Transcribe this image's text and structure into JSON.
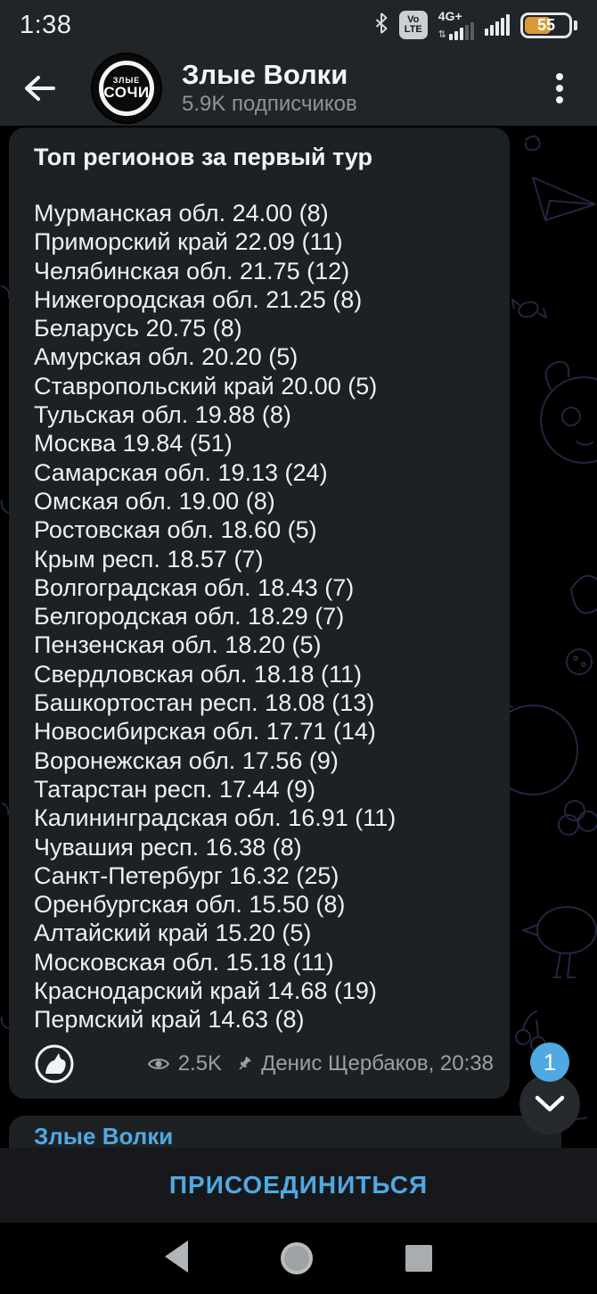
{
  "colors": {
    "accent": "#4fa9e2",
    "chrome_bg": "#212529",
    "bubble_bg": "#1e2124",
    "battery_fill": "#d79a36"
  },
  "status_bar": {
    "time": "1:38",
    "volte_line1": "Vo",
    "volte_line2": "LTE",
    "network_label": "4G+",
    "network_arrows": "⇅",
    "battery_level": "55"
  },
  "header": {
    "title": "Злые Волки",
    "subtitle": "5.9K подписчиков",
    "avatar": {
      "line1": "ЗЛЫЕ",
      "line2": "СОЧИ"
    }
  },
  "message": {
    "title": "Топ регионов за первый тур",
    "lines": [
      "Мурманская обл. 24.00 (8)",
      "Приморский край 22.09 (11)",
      "Челябинская обл. 21.75 (12)",
      "Нижегородская обл. 21.25 (8)",
      "Беларусь 20.75 (8)",
      "Амурская обл. 20.20 (5)",
      "Ставропольский край 20.00 (5)",
      "Тульская обл. 19.88 (8)",
      "Москва 19.84 (51)",
      "Самарская обл. 19.13 (24)",
      "Омская обл. 19.00 (8)",
      "Ростовская обл. 18.60 (5)",
      "Крым респ. 18.57 (7)",
      "Волгоградская обл. 18.43 (7)",
      "Белгородская обл. 18.29 (7)",
      "Пензенская обл. 18.20 (5)",
      "Свердловская обл. 18.18 (11)",
      "Башкортостан респ. 18.08 (13)",
      "Новосибирская обл. 17.71 (14)",
      "Воронежская обл. 17.56 (9)",
      "Татарстан респ. 17.44 (9)",
      "Калининградская обл. 16.91 (11)",
      "Чувашия респ. 16.38 (8)",
      "Санкт-Петербург 16.32 (25)",
      "Оренбургская обл. 15.50 (8)",
      "Алтайский край 15.20 (5)",
      "Московская обл. 15.18 (11)",
      "Краснодарский край 14.68 (19)",
      "Пермский край 14.63 (8)"
    ],
    "views": "2.5K",
    "signature": "Денис Щербаков, 20:38"
  },
  "scroll_to_bottom": {
    "unread_badge": "1"
  },
  "next_message": {
    "author": "Злые Волки"
  },
  "join_bar": {
    "label": "ПРИСОЕДИНИТЬСЯ"
  }
}
